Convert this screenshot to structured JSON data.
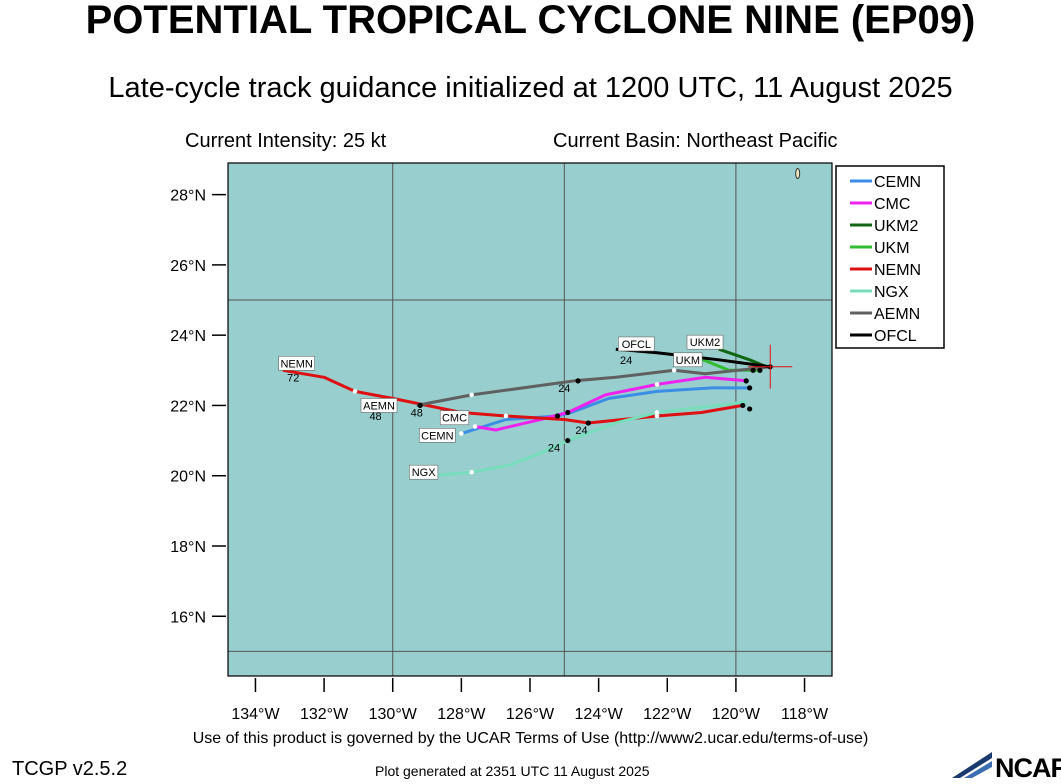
{
  "header": {
    "title": "POTENTIAL TROPICAL CYCLONE NINE (EP09)",
    "subtitle": "Late-cycle track guidance initialized at 1200 UTC, 11 August 2025",
    "intensity": "Current Intensity: 25 kt",
    "basin": "Current Basin: Northeast Pacific"
  },
  "footer": {
    "terms": "Use of this product is governed by the UCAR Terms of Use (http://www2.ucar.edu/terms-of-use)",
    "version": "TCGP v2.5.2",
    "generated": "Plot generated at 2351 UTC   11 August 2025",
    "logo_text": "NCAR"
  },
  "colors": {
    "ocean": "#98cece",
    "grid": "#555555",
    "land": "#e8e8c0"
  },
  "axes": {
    "lat_labels": [
      "28°N",
      "26°N",
      "24°N",
      "22°N",
      "20°N",
      "18°N",
      "16°N"
    ],
    "lat_values": [
      28,
      26,
      24,
      22,
      20,
      18,
      16
    ],
    "lon_labels": [
      "134°W",
      "132°W",
      "130°W",
      "128°W",
      "126°W",
      "124°W",
      "122°W",
      "120°W",
      "118°W"
    ],
    "lon_values": [
      -134,
      -132,
      -130,
      -128,
      -126,
      -124,
      -122,
      -120,
      -118
    ],
    "lat_range": [
      14.3,
      28.9
    ],
    "lon_range": [
      -134.8,
      -117.2
    ]
  },
  "storm_position": {
    "lat": 23.1,
    "lon": -119.0
  },
  "chart_data": {
    "type": "map-tracks",
    "series": [
      {
        "name": "CEMN",
        "color": "#3a8ee6",
        "points": [
          [
            -119.6,
            22.5
          ],
          [
            -120.7,
            22.5
          ],
          [
            -122.3,
            22.4
          ],
          [
            -123.7,
            22.2
          ],
          [
            -124.8,
            21.8
          ],
          [
            -125.2,
            21.7
          ],
          [
            -126.7,
            21.6
          ],
          [
            -128.0,
            21.2
          ]
        ],
        "label": "CEMN",
        "label_at": [
          -128.7,
          21.15
        ],
        "hour_labels": []
      },
      {
        "name": "CMC",
        "color": "#ee22ee",
        "points": [
          [
            -119.7,
            22.7
          ],
          [
            -120.9,
            22.8
          ],
          [
            -122.3,
            22.6
          ],
          [
            -123.8,
            22.3
          ],
          [
            -124.9,
            21.8
          ],
          [
            -125.7,
            21.6
          ],
          [
            -127.0,
            21.3
          ],
          [
            -127.6,
            21.4
          ]
        ],
        "label": "CMC",
        "label_at": [
          -128.2,
          21.65
        ],
        "hour_labels": []
      },
      {
        "name": "UKM2",
        "color": "#116611",
        "points": [
          [
            -119.1,
            23.1
          ],
          [
            -119.6,
            23.3
          ],
          [
            -120.5,
            23.6
          ]
        ],
        "label": "UKM2",
        "label_at": [
          -120.9,
          23.8
        ],
        "hour_labels": []
      },
      {
        "name": "UKM",
        "color": "#33bb33",
        "points": [
          [
            -119.3,
            23.0
          ],
          [
            -120.2,
            23.0
          ],
          [
            -121.2,
            23.4
          ]
        ],
        "label": "UKM",
        "label_at": [
          -121.4,
          23.3
        ],
        "hour_labels": []
      },
      {
        "name": "NEMN",
        "color": "#dd1111",
        "points": [
          [
            -119.8,
            22.0
          ],
          [
            -121.0,
            21.8
          ],
          [
            -122.3,
            21.7
          ],
          [
            -124.3,
            21.5
          ],
          [
            -125.0,
            21.6
          ],
          [
            -126.7,
            21.7
          ],
          [
            -128.0,
            21.8
          ],
          [
            -130.0,
            22.2
          ],
          [
            -131.1,
            22.4
          ],
          [
            -132.0,
            22.8
          ],
          [
            -133.2,
            23.0
          ]
        ],
        "label": "NEMN",
        "label_at": [
          -132.8,
          23.2
        ],
        "hour_labels": [
          {
            "text": "24",
            "at": [
              -124.5,
              21.3
            ]
          },
          {
            "text": "48",
            "at": [
              -129.3,
              21.8
            ]
          },
          {
            "text": "72",
            "at": [
              -132.9,
              22.8
            ]
          }
        ]
      },
      {
        "name": "NGX",
        "color": "#77ddbb",
        "points": [
          [
            -119.7,
            22.1
          ],
          [
            -121.4,
            21.9
          ],
          [
            -122.3,
            21.8
          ],
          [
            -123.5,
            21.5
          ],
          [
            -124.9,
            21.0
          ],
          [
            -125.8,
            20.6
          ],
          [
            -126.6,
            20.3
          ],
          [
            -127.7,
            20.1
          ],
          [
            -128.9,
            20.0
          ]
        ],
        "label": "NGX",
        "label_at": [
          -129.1,
          20.1
        ],
        "hour_labels": [
          {
            "text": "24",
            "at": [
              -125.3,
              20.8
            ]
          }
        ]
      },
      {
        "name": "AEMN",
        "color": "#606060",
        "points": [
          [
            -119.0,
            23.1
          ],
          [
            -120.9,
            22.9
          ],
          [
            -121.8,
            23.0
          ],
          [
            -123.5,
            22.8
          ],
          [
            -124.7,
            22.7
          ],
          [
            -127.7,
            22.3
          ],
          [
            -129.3,
            22.0
          ]
        ],
        "label": "AEMN",
        "label_at": [
          -130.4,
          22.0
        ],
        "hour_labels": [
          {
            "text": "24",
            "at": [
              -125.0,
              22.5
            ]
          },
          {
            "text": "48",
            "at": [
              -130.5,
              21.7
            ]
          }
        ]
      },
      {
        "name": "OFCL",
        "color": "#000000",
        "points": [
          [
            -119.0,
            23.1
          ],
          [
            -120.5,
            23.3
          ],
          [
            -122.3,
            23.5
          ],
          [
            -123.5,
            23.6
          ]
        ],
        "label": "OFCL",
        "label_at": [
          -122.9,
          23.75
        ],
        "hour_labels": [
          {
            "text": "24",
            "at": [
              -123.2,
              23.3
            ]
          }
        ]
      }
    ],
    "black_markers": [
      [
        -124.6,
        22.7
      ],
      [
        -124.9,
        21.8
      ],
      [
        -125.2,
        21.7
      ],
      [
        -124.3,
        21.5
      ],
      [
        -124.9,
        21.0
      ],
      [
        -129.2,
        22.0
      ],
      [
        -119.8,
        22.0
      ],
      [
        -119.6,
        21.9
      ],
      [
        -119.6,
        22.5
      ],
      [
        -119.7,
        22.7
      ],
      [
        -119.3,
        23.0
      ],
      [
        -119.0,
        23.1
      ],
      [
        -119.5,
        23.0
      ]
    ],
    "white_markers": [
      [
        -122.3,
        22.6
      ],
      [
        -122.3,
        21.8
      ],
      [
        -122.3,
        21.7
      ],
      [
        -121.8,
        23.0
      ],
      [
        -127.7,
        22.3
      ],
      [
        -131.1,
        22.4
      ],
      [
        -126.7,
        21.7
      ],
      [
        -127.6,
        21.4
      ],
      [
        -127.7,
        20.1
      ],
      [
        -128.0,
        21.2
      ]
    ],
    "legend": [
      "CEMN",
      "CMC",
      "UKM2",
      "UKM",
      "NEMN",
      "NGX",
      "AEMN",
      "OFCL"
    ]
  }
}
